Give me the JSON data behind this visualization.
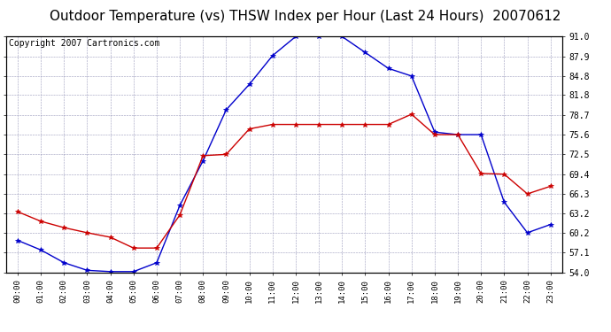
{
  "title": "Outdoor Temperature (vs) THSW Index per Hour (Last 24 Hours)  20070612",
  "copyright": "Copyright 2007 Cartronics.com",
  "hours": [
    "00:00",
    "01:00",
    "02:00",
    "03:00",
    "04:00",
    "05:00",
    "06:00",
    "07:00",
    "08:00",
    "09:00",
    "10:00",
    "11:00",
    "12:00",
    "13:00",
    "14:00",
    "15:00",
    "16:00",
    "17:00",
    "18:00",
    "19:00",
    "20:00",
    "21:00",
    "22:00",
    "23:00"
  ],
  "temp_blue": [
    59.0,
    57.5,
    55.5,
    54.3,
    54.1,
    54.1,
    55.5,
    64.5,
    71.5,
    79.5,
    83.5,
    88.0,
    91.0,
    91.0,
    91.0,
    88.5,
    86.0,
    84.8,
    76.0,
    75.6,
    75.6,
    65.0,
    60.2,
    61.5
  ],
  "temp_red": [
    63.5,
    62.0,
    61.0,
    60.2,
    59.5,
    57.8,
    57.8,
    63.0,
    72.3,
    72.5,
    76.5,
    77.2,
    77.2,
    77.2,
    77.2,
    77.2,
    77.2,
    78.8,
    75.6,
    75.6,
    69.5,
    69.4,
    66.3,
    67.5
  ],
  "ylim": [
    54.0,
    91.0
  ],
  "yticks": [
    54.0,
    57.1,
    60.2,
    63.2,
    66.3,
    69.4,
    72.5,
    75.6,
    78.7,
    81.8,
    84.8,
    87.9,
    91.0
  ],
  "ytick_labels": [
    "54.0",
    "57.1",
    "60.2",
    "63.2",
    "66.3",
    "69.4",
    "72.5",
    "75.6",
    "78.7",
    "81.8",
    "84.8",
    "87.9",
    "91.0"
  ],
  "blue_color": "#0000cc",
  "red_color": "#cc0000",
  "bg_color": "#ffffff",
  "grid_color": "#9999bb",
  "title_fontsize": 11,
  "copyright_fontsize": 7
}
